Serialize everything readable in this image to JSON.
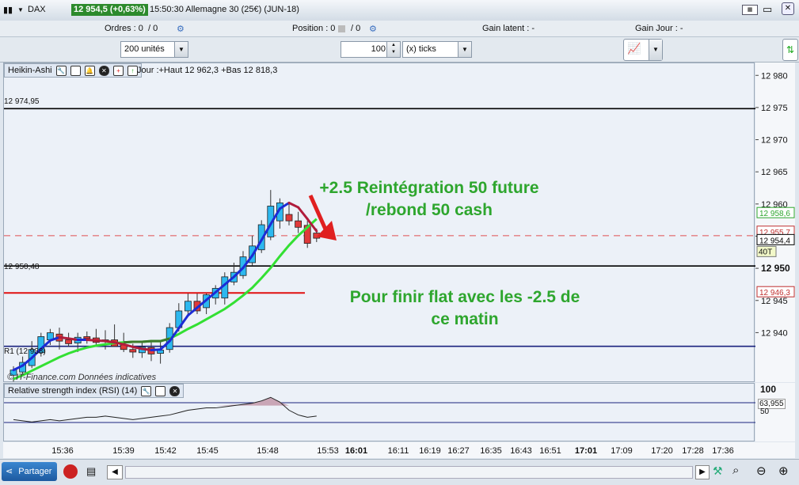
{
  "titlebar": {
    "instrument": "DAX",
    "quote": "12 954,5 (+0,63%)",
    "info": "15:50:30 Allemagne 30 (25€) (JUN-18)"
  },
  "infobar": {
    "orders": "Ordres : 0",
    "orders_slash": "/ 0",
    "position": "Position : 0",
    "position_slash": "/ 0",
    "latent": "Gain latent :  -",
    "day": "Gain Jour :  -"
  },
  "controls": {
    "units": "200 unités",
    "qty": "100",
    "ticks": "(x) ticks"
  },
  "chart_head": {
    "label": "Heikin-Ashi",
    "info": "Jour :+Haut 12 962,3 +Bas 12 818,3"
  },
  "rsi_head": {
    "label": "Relative strength index (RSI) (14)"
  },
  "watermark": "© IT-Finance.com  Données indicatives",
  "annotations": {
    "top1": "+2.5 Reintégration 50 future",
    "top2": "/rebond 50 cash",
    "bot1": "Pour finir flat avec les -2.5 de",
    "bot2": "ce matin"
  },
  "share_button": "Partager",
  "colors": {
    "bull": "#2db8ef",
    "bear": "#e03a3a",
    "ma_up": "#1c2cd6",
    "ma_down": "#b01c3c",
    "ma_slow": "#33e033",
    "annotation": "#2ea62e"
  },
  "chart_data": {
    "type": "candlestick",
    "style": "Heikin-Ashi",
    "x_ticks": [
      "15:36",
      "15:39",
      "15:42",
      "15:45",
      "15:48",
      "15:53",
      "16:01",
      "16:11",
      "16:19",
      "16:27",
      "16:35",
      "16:43",
      "16:51",
      "17:01",
      "17:09",
      "17:20",
      "17:28",
      "17:36"
    ],
    "y_ticks": [
      "12 980",
      "12 975",
      "12 970",
      "12 965",
      "12 960",
      "12 955",
      "12 950",
      "12 945",
      "12 940"
    ],
    "ylim": [
      12932.3,
      12982.0
    ],
    "hlines": [
      {
        "label": "12 974,95",
        "value": 12974.95,
        "color": "#000000"
      },
      {
        "label": "12 950,48",
        "value": 12950.48,
        "color": "#000000"
      },
      {
        "label": "R1 (12 938)",
        "value": 12938.0,
        "color": "#1a237e"
      },
      {
        "value": 12946.3,
        "color": "#e01010"
      },
      {
        "value": 12955.2,
        "color": "#e05050",
        "dashed": true
      }
    ],
    "price_tags": [
      {
        "text": "12 958,6",
        "value": 12958.6,
        "color": "#2ea62e"
      },
      {
        "text": "12 955,7",
        "value": 12955.7,
        "color": "#c03030"
      },
      {
        "text": "12 954,4",
        "value": 12954.4,
        "color": "#000000"
      },
      {
        "text": "12 946,3",
        "value": 12946.3,
        "color": "#c03030"
      }
    ],
    "tag_40t": "40T",
    "axis_bold": "12 950",
    "candles": [
      {
        "o": 12933.5,
        "h": 12934.9,
        "l": 12932.5,
        "c": 12934.3
      },
      {
        "o": 12934.0,
        "h": 12936.4,
        "l": 12933.4,
        "c": 12935.5
      },
      {
        "o": 12935.0,
        "h": 12938.8,
        "l": 12934.6,
        "c": 12937.5
      },
      {
        "o": 12937.0,
        "h": 12940.1,
        "l": 12936.4,
        "c": 12939.5
      },
      {
        "o": 12939.0,
        "h": 12940.7,
        "l": 12938.2,
        "c": 12940.1
      },
      {
        "o": 12939.9,
        "h": 12940.9,
        "l": 12937.5,
        "c": 12938.8
      },
      {
        "o": 12939.0,
        "h": 12940.1,
        "l": 12937.9,
        "c": 12938.4
      },
      {
        "o": 12938.5,
        "h": 12940.1,
        "l": 12937.1,
        "c": 12939.4
      },
      {
        "o": 12939.5,
        "h": 12940.3,
        "l": 12938.4,
        "c": 12939.2
      },
      {
        "o": 12939.3,
        "h": 12940.7,
        "l": 12938.2,
        "c": 12938.6
      },
      {
        "o": 12938.9,
        "h": 12940.5,
        "l": 12937.5,
        "c": 12939.0
      },
      {
        "o": 12939.0,
        "h": 12941.4,
        "l": 12938.0,
        "c": 12938.0
      },
      {
        "o": 12938.2,
        "h": 12940.1,
        "l": 12937.1,
        "c": 12937.5
      },
      {
        "o": 12937.5,
        "h": 12938.4,
        "l": 12936.2,
        "c": 12937.1
      },
      {
        "o": 12937.0,
        "h": 12938.8,
        "l": 12936.2,
        "c": 12937.9
      },
      {
        "o": 12937.8,
        "h": 12939.0,
        "l": 12935.7,
        "c": 12936.8
      },
      {
        "o": 12936.9,
        "h": 12938.8,
        "l": 12935.3,
        "c": 12937.4
      },
      {
        "o": 12937.5,
        "h": 12941.6,
        "l": 12937.0,
        "c": 12940.9
      },
      {
        "o": 12940.9,
        "h": 12944.7,
        "l": 12940.3,
        "c": 12943.5
      },
      {
        "o": 12943.5,
        "h": 12946.2,
        "l": 12942.8,
        "c": 12945.0
      },
      {
        "o": 12945.0,
        "h": 12946.2,
        "l": 12943.0,
        "c": 12943.5
      },
      {
        "o": 12944.0,
        "h": 12946.2,
        "l": 12943.0,
        "c": 12946.0
      },
      {
        "o": 12945.5,
        "h": 12947.5,
        "l": 12944.5,
        "c": 12947.0
      },
      {
        "o": 12945.5,
        "h": 12949.5,
        "l": 12944.5,
        "c": 12948.8
      },
      {
        "o": 12948.0,
        "h": 12951.0,
        "l": 12947.5,
        "c": 12949.5
      },
      {
        "o": 12949.0,
        "h": 12952.8,
        "l": 12948.5,
        "c": 12951.9
      },
      {
        "o": 12951.0,
        "h": 12955.2,
        "l": 12950.5,
        "c": 12953.6
      },
      {
        "o": 12953.0,
        "h": 12957.6,
        "l": 12952.5,
        "c": 12956.9
      },
      {
        "o": 12955.0,
        "h": 12962.3,
        "l": 12954.5,
        "c": 12959.8
      },
      {
        "o": 12957.5,
        "h": 12961.0,
        "l": 12956.3,
        "c": 12960.3
      },
      {
        "o": 12958.5,
        "h": 12960.2,
        "l": 12956.8,
        "c": 12957.5
      },
      {
        "o": 12957.5,
        "h": 12958.9,
        "l": 12955.6,
        "c": 12956.5
      },
      {
        "o": 12956.8,
        "h": 12957.5,
        "l": 12953.3,
        "c": 12954.0
      },
      {
        "o": 12955.6,
        "h": 12956.3,
        "l": 12954.2,
        "c": 12954.8
      }
    ],
    "ma_fast": [
      12934.3,
      12935.0,
      12936.2,
      12937.6,
      12938.9,
      12939.4,
      12939.2,
      12939.0,
      12939.0,
      12938.9,
      12938.8,
      12938.6,
      12938.3,
      12937.9,
      12937.6,
      12937.4,
      12937.5,
      12938.8,
      12940.8,
      12942.8,
      12944.0,
      12945.2,
      12946.4,
      12947.6,
      12948.8,
      12950.2,
      12952.1,
      12954.5,
      12957.0,
      12959.4,
      12960.3,
      12959.6,
      12957.8,
      12955.9
    ],
    "ma_slow": [
      12932.9,
      12933.5,
      12934.2,
      12934.9,
      12935.6,
      12936.3,
      12936.9,
      12937.4,
      12937.8,
      12938.1,
      12938.3,
      12938.5,
      12938.6,
      12938.7,
      12938.7,
      12938.8,
      12938.8,
      12939.2,
      12939.9,
      12940.7,
      12941.4,
      12942.2,
      12943.0,
      12943.8,
      12944.8,
      12945.9,
      12947.1,
      12948.6,
      12950.2,
      12952.0,
      12953.7,
      12955.2,
      12956.5,
      12957.8
    ],
    "rsi": {
      "title": "Relative strength index (RSI) (14)",
      "value_label": "63,955",
      "level_label": "50",
      "axis_label": "100",
      "values": [
        58,
        57,
        56,
        57,
        58,
        57,
        58,
        59,
        60,
        60,
        61,
        60,
        59,
        58,
        59,
        60,
        61,
        62,
        64,
        66,
        67,
        68,
        68,
        69,
        70,
        71,
        72,
        74,
        77,
        73,
        66,
        62,
        60,
        61
      ]
    }
  }
}
